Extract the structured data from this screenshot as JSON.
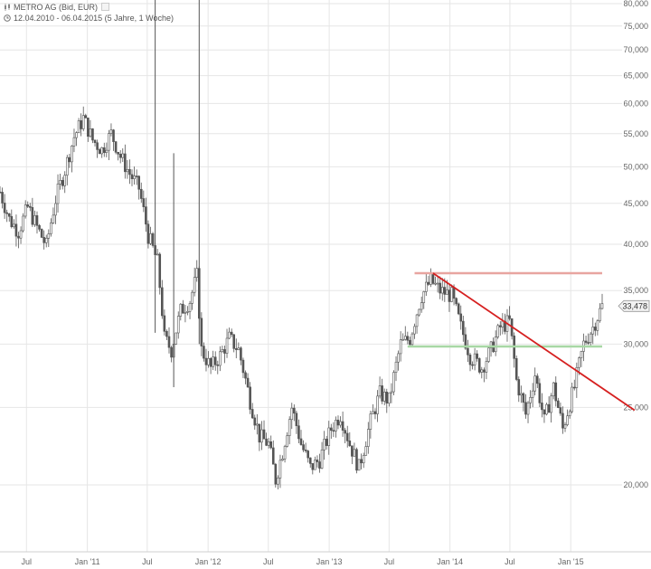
{
  "header": {
    "instrument": "METRO AG (Bid, EUR)",
    "period": "12.04.2010 - 06.04.2015 (5 Jahre, 1 Woche)",
    "chart_icon": "candles-icon",
    "clock_icon": "clock-icon"
  },
  "chart_data": {
    "type": "candlestick",
    "title": "METRO AG (Bid, EUR)",
    "subtitle": "12.04.2010 - 06.04.2015 (5 Jahre, 1 Woche)",
    "y_scale": "log",
    "ylim": [
      17.5,
      80
    ],
    "y_ticks": [
      {
        "value": 20,
        "label": "20,000"
      },
      {
        "value": 25,
        "label": "25,000"
      },
      {
        "value": 30,
        "label": "30,000"
      },
      {
        "value": 35,
        "label": "35,000"
      },
      {
        "value": 40,
        "label": "40,000"
      },
      {
        "value": 45,
        "label": "45,000"
      },
      {
        "value": 50,
        "label": "50,000"
      },
      {
        "value": 55,
        "label": "55,000"
      },
      {
        "value": 60,
        "label": "60,000"
      },
      {
        "value": 65,
        "label": "65,000"
      },
      {
        "value": 70,
        "label": "70,000"
      },
      {
        "value": 75,
        "label": "75,000"
      },
      {
        "value": 80,
        "label": "80,000"
      }
    ],
    "x_range": [
      "2010-04-12",
      "2015-04-06"
    ],
    "x_ticks": [
      {
        "date": "2010-07-01",
        "label": "Jul"
      },
      {
        "date": "2011-01-01",
        "label": "Jan '11"
      },
      {
        "date": "2011-07-01",
        "label": "Jul"
      },
      {
        "date": "2012-01-01",
        "label": "Jan '12"
      },
      {
        "date": "2012-07-01",
        "label": "Jul"
      },
      {
        "date": "2013-01-01",
        "label": "Jan '13"
      },
      {
        "date": "2013-07-01",
        "label": "Jul"
      },
      {
        "date": "2014-01-01",
        "label": "Jan '14"
      },
      {
        "date": "2014-07-01",
        "label": "Jul"
      },
      {
        "date": "2015-01-01",
        "label": "Jan '15"
      }
    ],
    "price_path": [
      [
        "2010-04-12",
        46.5
      ],
      [
        "2010-05-10",
        43.0
      ],
      [
        "2010-06-07",
        41.5
      ],
      [
        "2010-07-05",
        44.5
      ],
      [
        "2010-08-02",
        42.0
      ],
      [
        "2010-08-30",
        39.8
      ],
      [
        "2010-09-27",
        45.5
      ],
      [
        "2010-10-25",
        49.5
      ],
      [
        "2010-11-22",
        54.5
      ],
      [
        "2010-12-20",
        57.5
      ],
      [
        "2011-01-17",
        54.0
      ],
      [
        "2011-02-14",
        52.5
      ],
      [
        "2011-03-14",
        55.0
      ],
      [
        "2011-04-11",
        51.5
      ],
      [
        "2011-05-09",
        49.0
      ],
      [
        "2011-06-06",
        47.0
      ],
      [
        "2011-07-04",
        41.0
      ],
      [
        "2011-08-01",
        38.0
      ],
      [
        "2011-08-22",
        30.5
      ],
      [
        "2011-09-12",
        29.5
      ],
      [
        "2011-10-10",
        33.0
      ],
      [
        "2011-11-07",
        34.0
      ],
      [
        "2011-11-28",
        36.5
      ],
      [
        "2011-12-12",
        29.5
      ],
      [
        "2012-01-09",
        28.0
      ],
      [
        "2012-02-06",
        29.0
      ],
      [
        "2012-03-05",
        30.5
      ],
      [
        "2012-04-02",
        29.5
      ],
      [
        "2012-05-07",
        25.5
      ],
      [
        "2012-06-04",
        23.0
      ],
      [
        "2012-07-02",
        22.5
      ],
      [
        "2012-07-23",
        20.3
      ],
      [
        "2012-08-13",
        22.0
      ],
      [
        "2012-09-10",
        25.0
      ],
      [
        "2012-10-08",
        22.5
      ],
      [
        "2012-11-05",
        21.0
      ],
      [
        "2012-12-03",
        21.5
      ],
      [
        "2013-01-07",
        23.5
      ],
      [
        "2013-02-04",
        24.5
      ],
      [
        "2013-03-04",
        22.5
      ],
      [
        "2013-04-01",
        21.0
      ],
      [
        "2013-05-06",
        24.0
      ],
      [
        "2013-06-03",
        26.0
      ],
      [
        "2013-07-01",
        25.5
      ],
      [
        "2013-08-05",
        30.0
      ],
      [
        "2013-09-02",
        30.5
      ],
      [
        "2013-10-07",
        34.5
      ],
      [
        "2013-11-04",
        36.0
      ],
      [
        "2013-12-02",
        35.0
      ],
      [
        "2014-01-06",
        34.5
      ],
      [
        "2014-02-03",
        31.5
      ],
      [
        "2014-03-03",
        29.0
      ],
      [
        "2014-04-07",
        28.0
      ],
      [
        "2014-05-05",
        29.5
      ],
      [
        "2014-06-02",
        31.5
      ],
      [
        "2014-06-30",
        32.0
      ],
      [
        "2014-07-21",
        27.0
      ],
      [
        "2014-08-18",
        24.5
      ],
      [
        "2014-09-15",
        27.5
      ],
      [
        "2014-10-13",
        24.0
      ],
      [
        "2014-11-10",
        26.5
      ],
      [
        "2014-12-08",
        23.5
      ],
      [
        "2015-01-12",
        26.5
      ],
      [
        "2015-02-09",
        30.0
      ],
      [
        "2015-03-09",
        31.5
      ],
      [
        "2015-04-06",
        33.478
      ]
    ],
    "spikes": [
      {
        "date": "2011-07-25",
        "low": 31.0,
        "high": 85.0
      },
      {
        "date": "2011-09-19",
        "low": 26.5,
        "high": 52.0
      },
      {
        "date": "2011-12-05",
        "low": 30.0,
        "high": 85.0
      }
    ],
    "last_value": 33.478,
    "last_value_label": "33,478",
    "annotations": [
      {
        "type": "horizontal",
        "value": 36.8,
        "from": "2013-09-16",
        "to": "2015-04-06",
        "color": "#e8a5a0"
      },
      {
        "type": "horizontal",
        "value": 29.8,
        "from": "2013-08-26",
        "to": "2015-04-06",
        "color": "#a8d8a5"
      },
      {
        "type": "trendline",
        "from": [
          "2013-11-11",
          36.8
        ],
        "to": [
          "2015-07-13",
          24.8
        ],
        "color": "#d62020"
      }
    ],
    "grid": true,
    "legend": "none"
  },
  "colors": {
    "candle": "#555555",
    "grid": "#e6e6e6",
    "axis_text": "#666666",
    "resistance": "#e8a5a0",
    "support": "#a8d8a5",
    "trend": "#d62020"
  }
}
